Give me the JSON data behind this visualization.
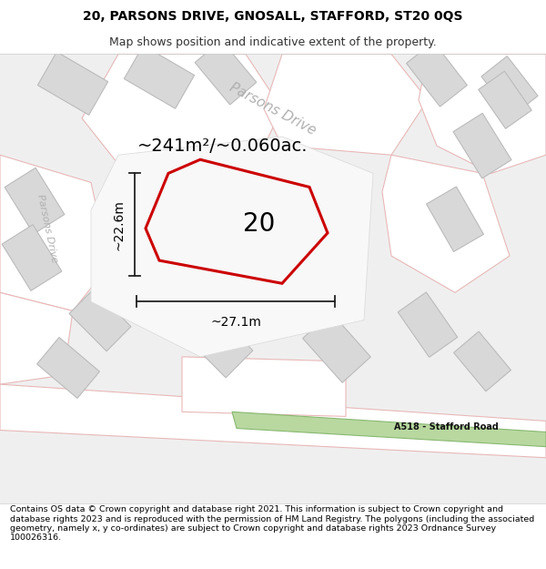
{
  "title_line1": "20, PARSONS DRIVE, GNOSALL, STAFFORD, ST20 0QS",
  "title_line2": "Map shows position and indicative extent of the property.",
  "area_text": "~241m²/~0.060ac.",
  "label_20": "20",
  "label_height": "~22.6m",
  "label_width": "~27.1m",
  "footer_text": "Contains OS data © Crown copyright and database right 2021. This information is subject to Crown copyright and database rights 2023 and is reproduced with the permission of HM Land Registry. The polygons (including the associated geometry, namely x, y co-ordinates) are subject to Crown copyright and database rights 2023 Ordnance Survey 100026316.",
  "road_label": "A518 - Stafford Road",
  "parsons_drive_label": "Parsons Drive",
  "parsons_drive_left_label": "Parsons Drive",
  "title_fontsize": 10,
  "subtitle_fontsize": 9,
  "area_fontsize": 14,
  "number_fontsize": 20,
  "dim_fontsize": 10,
  "footer_fontsize": 6.8,
  "map_bg": "#f0efef",
  "road_bg": "#ffffff",
  "building_fill": "#d8d8d8",
  "building_edge": "#bbbbbb",
  "road_edge_color": "#e8b8b8",
  "road_edge_lw": 0.8,
  "plot_edge_color": "#cc0000",
  "plot_lw": 2.2,
  "green_fill": "#b8d8a0",
  "green_edge": "#88b870",
  "road_label_color": "#333333",
  "dim_line_color": "#222222",
  "parsons_color": "#b0b0b0"
}
